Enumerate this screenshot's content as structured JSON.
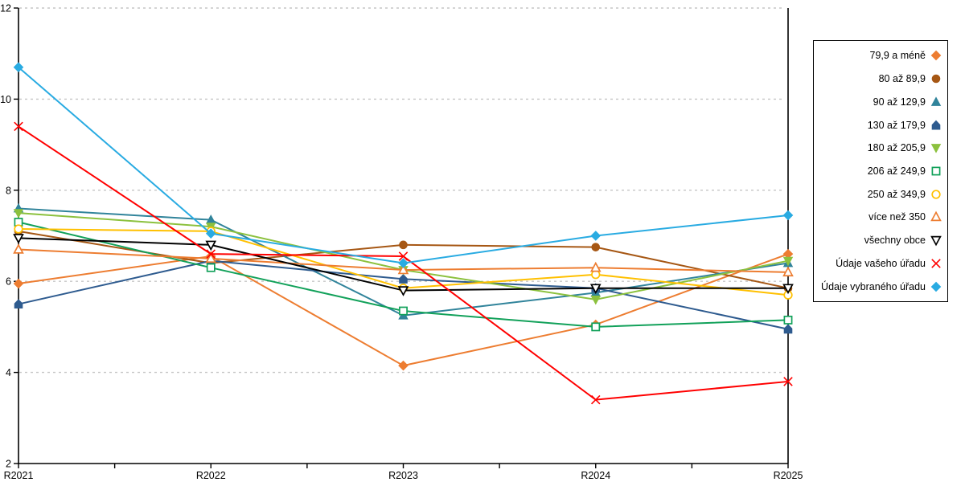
{
  "chart_data": {
    "type": "line",
    "title": "",
    "xlabel": "",
    "ylabel": "",
    "categories": [
      "R2021",
      "R2022",
      "R2023",
      "R2024",
      "R2025"
    ],
    "ylim": [
      2,
      12
    ],
    "yticks": [
      2,
      4,
      6,
      8,
      10,
      12
    ],
    "grid": "horizontal-dashed",
    "legend_position": "right-box",
    "series": [
      {
        "name": "79,9 a méně",
        "marker": "diamond",
        "style": "filled",
        "color": "#ED7D31",
        "values": [
          5.95,
          6.55,
          4.15,
          5.05,
          6.6
        ]
      },
      {
        "name": "80 až 89,9",
        "marker": "circle",
        "style": "filled",
        "color": "#A65714",
        "values": [
          7.1,
          6.4,
          6.8,
          6.75,
          5.85
        ]
      },
      {
        "name": "90 až 129,9",
        "marker": "triangle-up",
        "style": "filled",
        "color": "#31849B",
        "values": [
          7.6,
          7.35,
          5.25,
          5.75,
          6.4
        ]
      },
      {
        "name": "130 až 179,9",
        "marker": "pentagon",
        "style": "filled",
        "color": "#2E5B8F",
        "values": [
          5.5,
          6.45,
          6.05,
          5.85,
          4.95
        ]
      },
      {
        "name": "180 až 205,9",
        "marker": "triangle-down",
        "style": "filled",
        "color": "#8CC13E",
        "values": [
          7.5,
          7.2,
          6.25,
          5.6,
          6.45
        ]
      },
      {
        "name": "206 až 249,9",
        "marker": "square",
        "style": "open",
        "color": "#12A15A",
        "values": [
          7.3,
          6.3,
          5.35,
          5.0,
          5.15
        ]
      },
      {
        "name": "250 až 349,9",
        "marker": "circle",
        "style": "open",
        "color": "#FFC000",
        "values": [
          7.15,
          7.1,
          5.85,
          6.15,
          5.7
        ]
      },
      {
        "name": "více než 350",
        "marker": "triangle-up",
        "style": "open",
        "color": "#ED7D31",
        "values": [
          6.7,
          6.5,
          6.25,
          6.3,
          6.2
        ]
      },
      {
        "name": "všechny obce",
        "marker": "triangle-down",
        "style": "open",
        "color": "#000000",
        "values": [
          6.95,
          6.8,
          5.8,
          5.85,
          5.85
        ]
      },
      {
        "name": "Údaje vašeho úřadu",
        "marker": "x",
        "style": "line",
        "color": "#FF0000",
        "values": [
          9.4,
          6.6,
          6.55,
          3.4,
          3.8
        ]
      },
      {
        "name": "Údaje vybraného úřadu",
        "marker": "diamond",
        "style": "filled",
        "color": "#29ABE2",
        "values": [
          10.7,
          7.05,
          6.4,
          7.0,
          7.45
        ]
      }
    ],
    "colors": {
      "grid": "#C6C6C6",
      "axis": "#000000",
      "background": "#FFFFFF"
    }
  }
}
